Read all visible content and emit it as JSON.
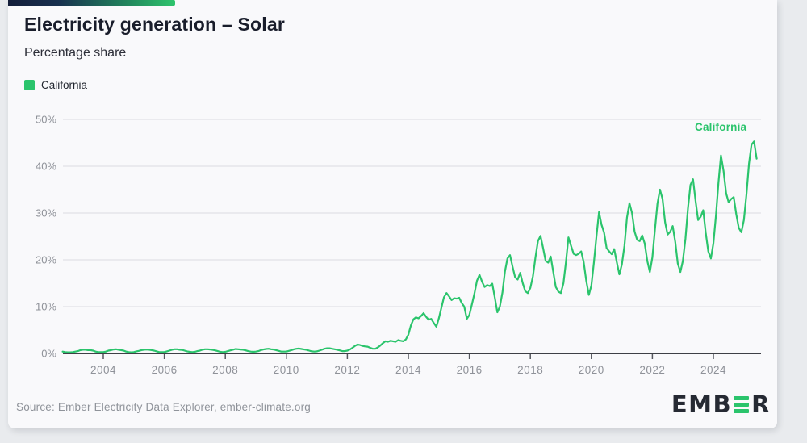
{
  "header": {
    "title": "Electricity generation – Solar",
    "subtitle": "Percentage share"
  },
  "legend": {
    "label": "California"
  },
  "footer": {
    "source": "Source: Ember Electricity Data Explorer, ember-climate.org",
    "logo_prefix": "EMB",
    "logo_suffix": "R"
  },
  "colors": {
    "accent_green": "#2bc46c",
    "navy": "#141e3a",
    "grid": "#dcdce0",
    "zero_axis": "#3e4046",
    "tick": "#55575e",
    "axis_text": "#8f9299",
    "card_bg": "#f9f9fb",
    "page_bg": "#e9ebee"
  },
  "chart_data": {
    "type": "line",
    "title": "Electricity generation – Solar",
    "subtitle": "Percentage share",
    "xlabel": "",
    "ylabel": "Percentage share",
    "ylim": [
      0,
      50
    ],
    "y_ticks": [
      0,
      10,
      20,
      30,
      40,
      50
    ],
    "y_tick_suffix": "%",
    "x_ticks": [
      2004,
      2006,
      2008,
      2010,
      2012,
      2014,
      2016,
      2018,
      2020,
      2022,
      2024
    ],
    "grid": "horizontal",
    "legend_position": "top-left",
    "series": [
      {
        "name": "California",
        "color": "#2bc46c",
        "frequency": "monthly",
        "start_year": 2002,
        "start_month": 9,
        "values": [
          0.4,
          0.3,
          0.25,
          0.25,
          0.3,
          0.4,
          0.5,
          0.7,
          0.8,
          0.8,
          0.7,
          0.7,
          0.6,
          0.4,
          0.3,
          0.3,
          0.3,
          0.4,
          0.6,
          0.7,
          0.85,
          0.9,
          0.8,
          0.7,
          0.6,
          0.4,
          0.3,
          0.25,
          0.3,
          0.45,
          0.55,
          0.7,
          0.8,
          0.85,
          0.8,
          0.7,
          0.6,
          0.45,
          0.3,
          0.3,
          0.3,
          0.45,
          0.6,
          0.8,
          0.9,
          0.9,
          0.8,
          0.75,
          0.6,
          0.45,
          0.35,
          0.3,
          0.35,
          0.5,
          0.6,
          0.8,
          0.9,
          0.9,
          0.85,
          0.75,
          0.65,
          0.5,
          0.35,
          0.3,
          0.35,
          0.5,
          0.65,
          0.8,
          0.95,
          0.9,
          0.85,
          0.8,
          0.65,
          0.5,
          0.4,
          0.35,
          0.4,
          0.5,
          0.7,
          0.85,
          0.95,
          1.0,
          0.9,
          0.85,
          0.7,
          0.55,
          0.4,
          0.4,
          0.4,
          0.55,
          0.7,
          0.9,
          1.0,
          1.05,
          0.95,
          0.85,
          0.75,
          0.6,
          0.45,
          0.4,
          0.45,
          0.6,
          0.8,
          1.0,
          1.1,
          1.1,
          1.0,
          0.9,
          0.8,
          0.65,
          0.5,
          0.5,
          0.6,
          0.85,
          1.2,
          1.6,
          1.9,
          1.8,
          1.6,
          1.5,
          1.45,
          1.2,
          1.0,
          1.0,
          1.3,
          1.7,
          2.2,
          2.6,
          2.5,
          2.7,
          2.6,
          2.5,
          2.85,
          2.7,
          2.6,
          3.0,
          4.0,
          6.0,
          7.3,
          7.7,
          7.5,
          8.0,
          8.6,
          7.8,
          7.2,
          7.4,
          6.5,
          5.7,
          7.5,
          9.8,
          12.0,
          12.9,
          12.2,
          11.4,
          11.8,
          11.7,
          11.9,
          10.8,
          10.0,
          7.4,
          8.2,
          10.5,
          12.8,
          15.5,
          16.8,
          15.3,
          14.2,
          14.6,
          14.4,
          14.9,
          12.0,
          8.8,
          10.0,
          13.0,
          17.5,
          20.3,
          21.0,
          18.5,
          16.3,
          15.8,
          17.2,
          15.0,
          13.3,
          12.9,
          14.0,
          16.5,
          20.5,
          24.0,
          25.1,
          22.5,
          19.8,
          19.4,
          20.7,
          17.5,
          14.2,
          13.2,
          12.9,
          15.0,
          19.5,
          24.8,
          23.0,
          21.3,
          21.0,
          21.3,
          21.8,
          19.5,
          15.5,
          12.5,
          14.5,
          19.5,
          25.0,
          30.2,
          27.5,
          25.8,
          22.5,
          21.8,
          21.2,
          22.3,
          19.5,
          16.9,
          19.0,
          23.0,
          29.0,
          32.1,
          30.0,
          26.0,
          24.3,
          24.0,
          25.2,
          23.5,
          19.8,
          17.4,
          20.5,
          26.5,
          32.0,
          35.0,
          33.0,
          28.0,
          25.4,
          26.0,
          27.2,
          23.8,
          19.2,
          17.4,
          19.8,
          24.5,
          31.0,
          36.0,
          37.2,
          32.5,
          28.5,
          29.2,
          30.6,
          25.8,
          21.8,
          20.3,
          23.5,
          29.5,
          36.5,
          42.3,
          39.0,
          34.2,
          32.3,
          33.0,
          33.4,
          29.8,
          26.8,
          25.9,
          28.5,
          34.0,
          40.5,
          44.6,
          45.3,
          41.6
        ]
      }
    ]
  }
}
